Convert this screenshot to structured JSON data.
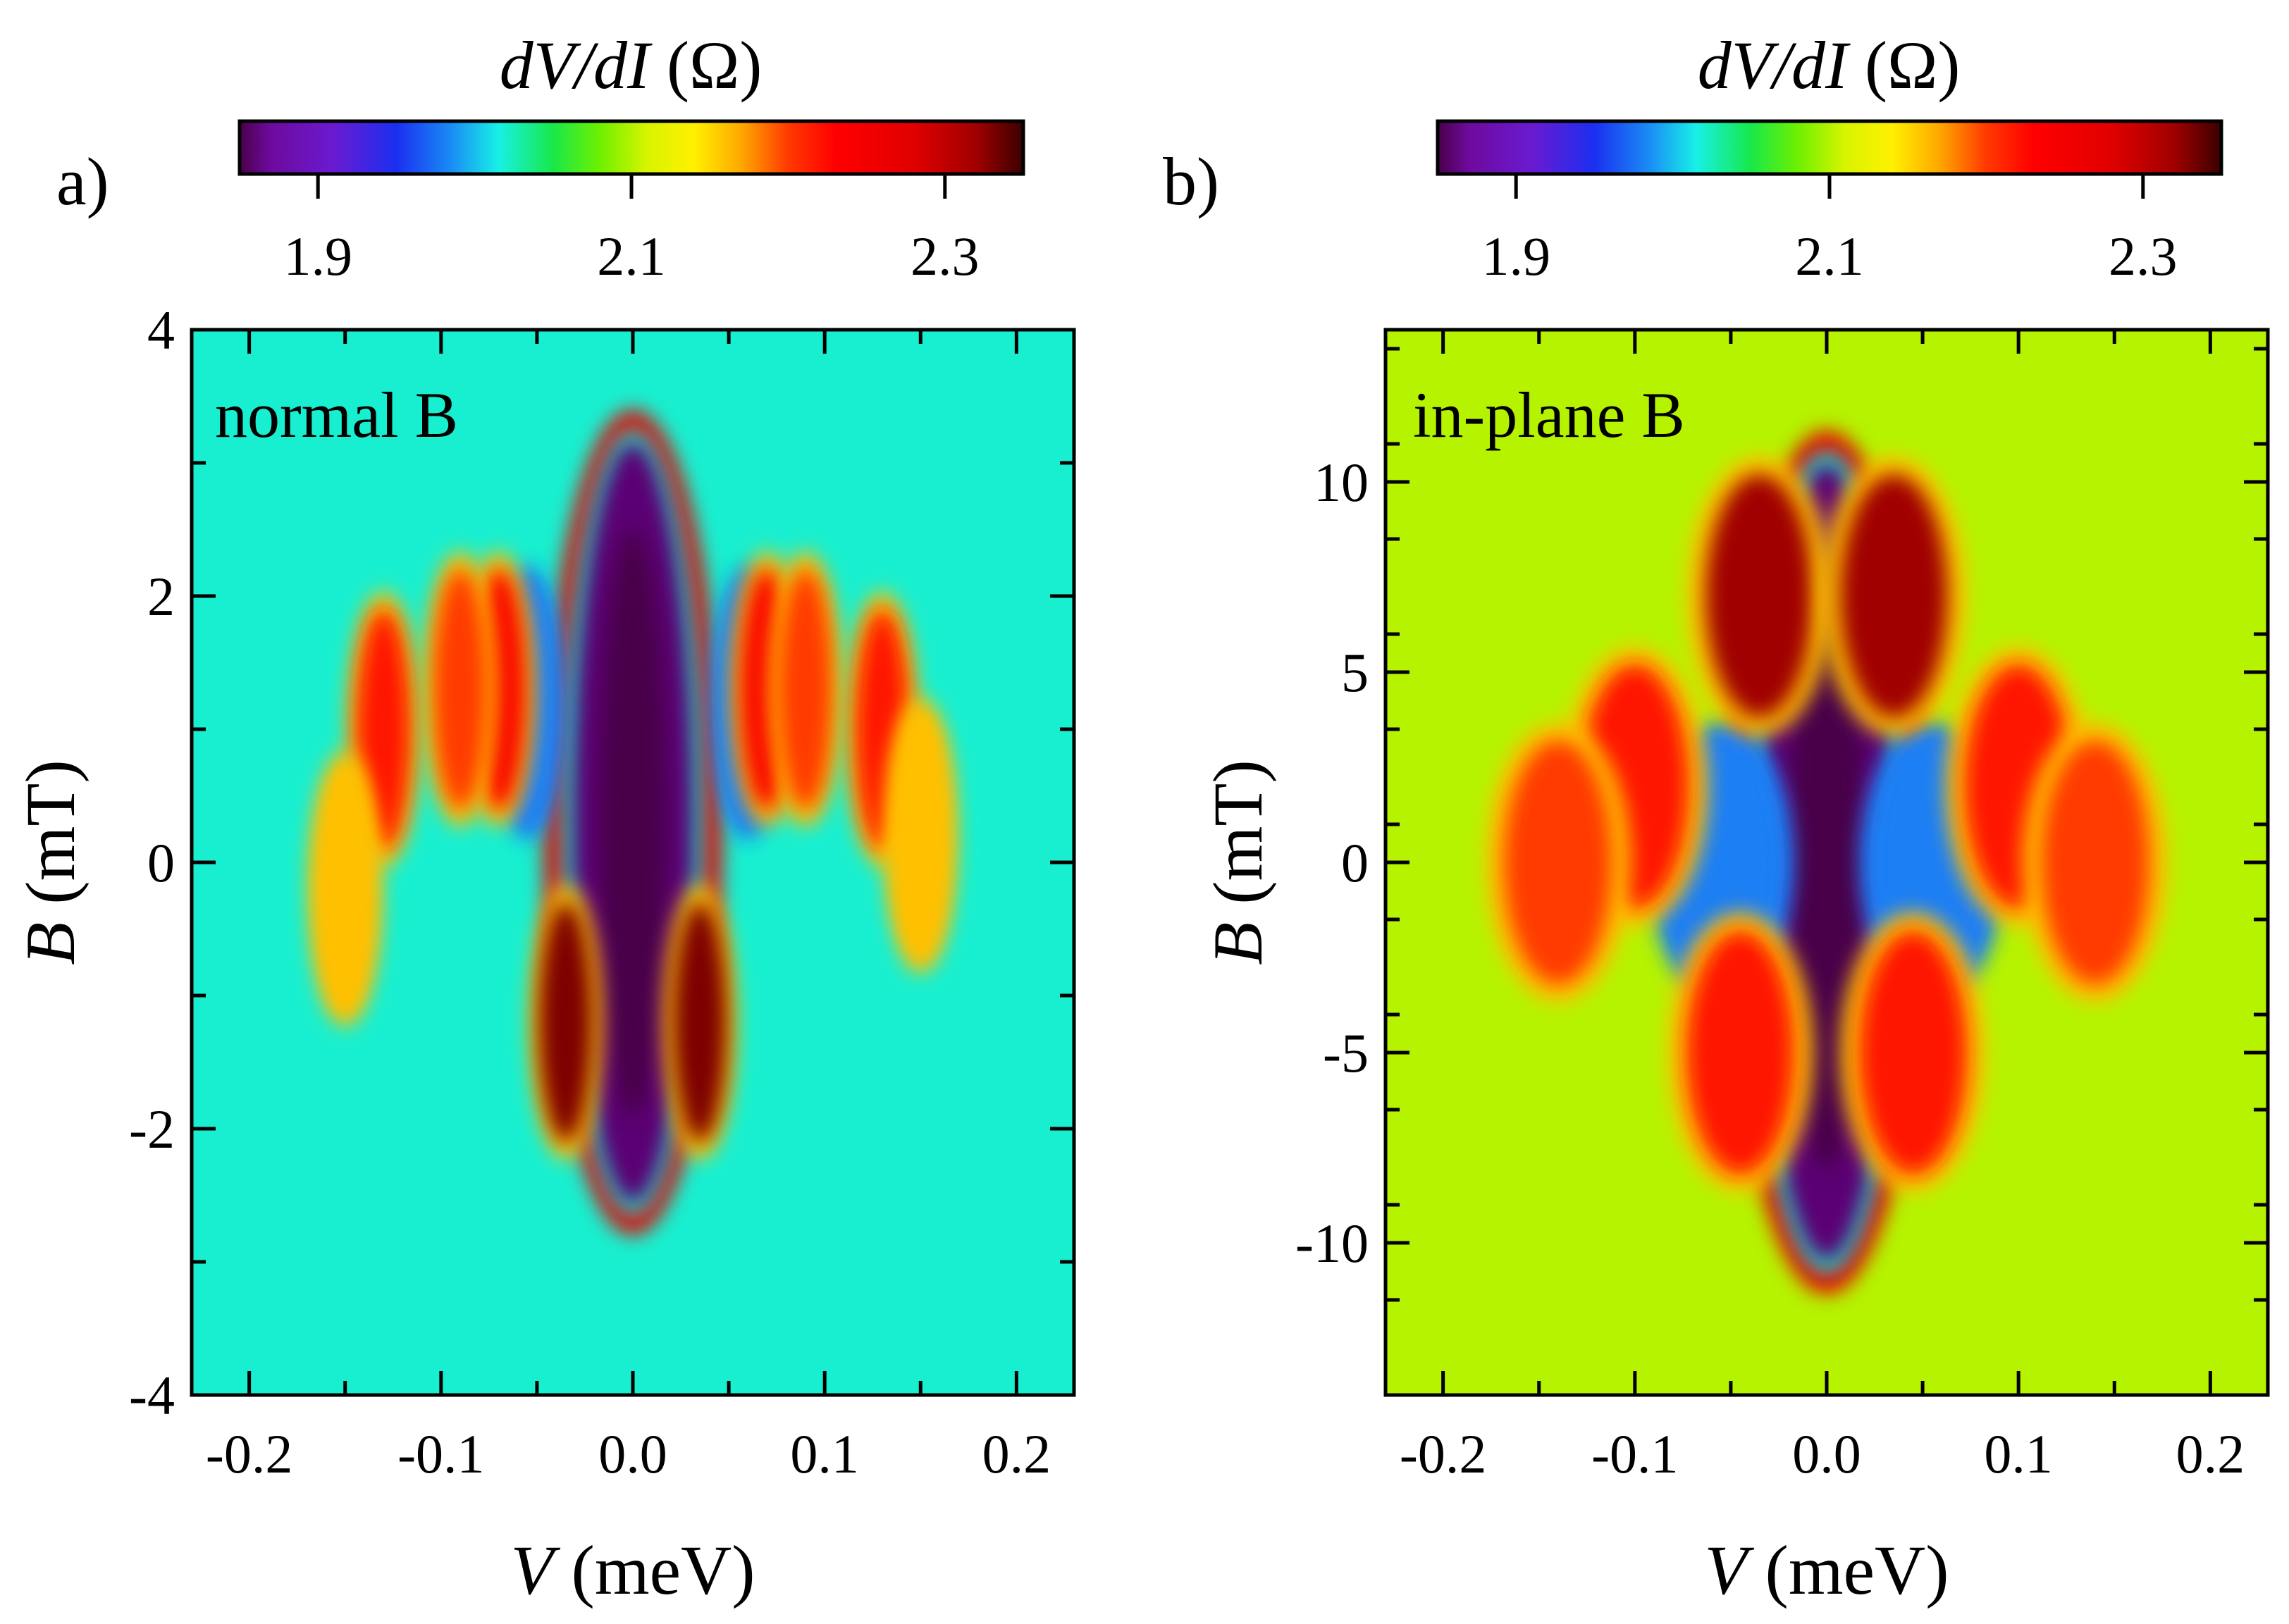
{
  "chart_data": [
    {
      "type": "heatmap",
      "panel_label": "a)",
      "annotation": "normal B",
      "xlabel_italic": "V",
      "xlabel_unit": " (meV)",
      "ylabel_italic": "B",
      "ylabel_unit": " (mT)",
      "xlim": [
        -0.23,
        0.23
      ],
      "ylim": [
        -4,
        4
      ],
      "xticks": [
        -0.2,
        -0.1,
        0.0,
        0.1,
        0.2
      ],
      "xtick_labels": [
        "-0.2",
        "-0.1",
        "0.0",
        "0.1",
        "0.2"
      ],
      "yticks": [
        -4,
        -2,
        0,
        2,
        4
      ],
      "ytick_labels": [
        "-4",
        "-2",
        "0",
        "2",
        "4"
      ],
      "background_value": 2.02,
      "colorbar": {
        "title_italic": "dV/dI",
        "title_unit": " (Ω)",
        "range": [
          1.85,
          2.35
        ],
        "ticks": [
          1.9,
          2.1,
          2.3
        ],
        "tick_labels": [
          "1.9",
          "2.1",
          "2.3"
        ]
      },
      "features": [
        {
          "v": 0.0,
          "b": 0.3,
          "value": 1.86,
          "note": "central dip, B -2.6..3.2 mT"
        },
        {
          "v": -0.035,
          "b": -1.2,
          "value": 2.33
        },
        {
          "v": 0.035,
          "b": -1.2,
          "value": 2.33
        },
        {
          "v": -0.055,
          "b": 1.2,
          "value": 1.98
        },
        {
          "v": 0.06,
          "b": 1.2,
          "value": 1.98
        },
        {
          "v": -0.07,
          "b": 1.3,
          "value": 2.24
        },
        {
          "v": 0.07,
          "b": 1.3,
          "value": 2.24
        },
        {
          "v": -0.09,
          "b": 1.3,
          "value": 2.2
        },
        {
          "v": 0.09,
          "b": 1.3,
          "value": 2.2
        },
        {
          "v": -0.13,
          "b": 1.0,
          "value": 2.22
        },
        {
          "v": 0.13,
          "b": 1.0,
          "value": 2.22
        },
        {
          "v": -0.15,
          "b": -0.2,
          "value": 2.16
        },
        {
          "v": 0.15,
          "b": 0.2,
          "value": 2.16
        }
      ]
    },
    {
      "type": "heatmap",
      "panel_label": "b)",
      "annotation": "in-plane B",
      "xlabel_italic": "V",
      "xlabel_unit": " (meV)",
      "ylabel_italic": "B",
      "ylabel_unit": " (mT)",
      "xlim": [
        -0.23,
        0.23
      ],
      "ylim": [
        -14,
        14
      ],
      "xticks": [
        -0.2,
        -0.1,
        0.0,
        0.1,
        0.2
      ],
      "xtick_labels": [
        "-0.2",
        "-0.1",
        "0.0",
        "0.1",
        "0.2"
      ],
      "yticks": [
        -10,
        -5,
        0,
        5,
        10
      ],
      "ytick_labels": [
        "-10",
        "-5",
        "0",
        "5",
        "10"
      ],
      "background_value": 2.1,
      "colorbar": {
        "title_italic": "dV/dI",
        "title_unit": " (Ω)",
        "range": [
          1.85,
          2.35
        ],
        "ticks": [
          1.9,
          2.1,
          2.3
        ],
        "tick_labels": [
          "1.9",
          "2.1",
          "2.3"
        ]
      },
      "features": [
        {
          "v": 0.0,
          "b": 0.0,
          "value": 1.86,
          "note": "central diamond dip, B -10..11 mT"
        },
        {
          "v": -0.055,
          "b": 0.0,
          "value": 1.98
        },
        {
          "v": 0.055,
          "b": 0.0,
          "value": 1.98
        },
        {
          "v": -0.035,
          "b": 7.0,
          "value": 2.32
        },
        {
          "v": 0.035,
          "b": 7.0,
          "value": 2.32
        },
        {
          "v": -0.1,
          "b": 2.0,
          "value": 2.22
        },
        {
          "v": 0.1,
          "b": 2.0,
          "value": 2.22
        },
        {
          "v": -0.14,
          "b": 0.0,
          "value": 2.2
        },
        {
          "v": 0.14,
          "b": 0.0,
          "value": 2.2
        },
        {
          "v": -0.045,
          "b": -5.0,
          "value": 2.22
        },
        {
          "v": 0.045,
          "b": -5.0,
          "value": 2.22
        }
      ]
    }
  ]
}
